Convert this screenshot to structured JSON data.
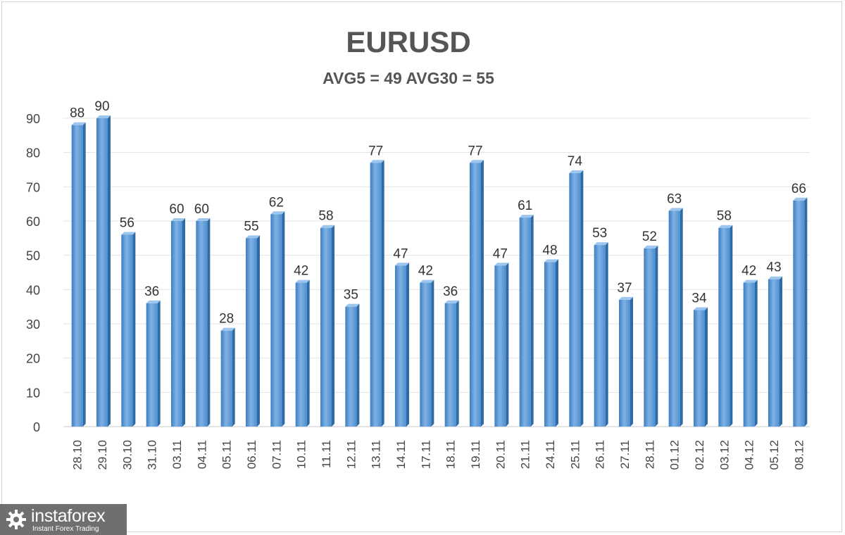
{
  "chart_data": {
    "type": "bar",
    "title": "EURUSD",
    "subtitle": "AVG5 = 49 AVG30 = 55",
    "xlabel": "",
    "ylabel": "",
    "ylim": [
      0,
      90
    ],
    "y_ticks": [
      0,
      10,
      20,
      30,
      40,
      50,
      60,
      70,
      80,
      90
    ],
    "grid": true,
    "legend": "none",
    "bar_color": "#5b9bd5",
    "categories": [
      "28.10",
      "29.10",
      "30.10",
      "31.10",
      "03.11",
      "04.11",
      "05.11",
      "06.11",
      "07.11",
      "10.11",
      "11.11",
      "12.11",
      "13.11",
      "14.11",
      "17.11",
      "18.11",
      "19.11",
      "20.11",
      "21.11",
      "24.11",
      "25.11",
      "26.11",
      "27.11",
      "28.11",
      "01.12",
      "02.12",
      "03.12",
      "04.12",
      "05.12",
      "08.12"
    ],
    "values": [
      88,
      90,
      56,
      36,
      60,
      60,
      28,
      55,
      62,
      42,
      58,
      35,
      77,
      47,
      42,
      36,
      77,
      47,
      61,
      48,
      74,
      53,
      37,
      52,
      63,
      34,
      58,
      42,
      43,
      66
    ],
    "data_labels": true
  },
  "watermark": {
    "brand": "instaforex",
    "tagline": "Instant Forex Trading",
    "icon": "gear-icon"
  }
}
